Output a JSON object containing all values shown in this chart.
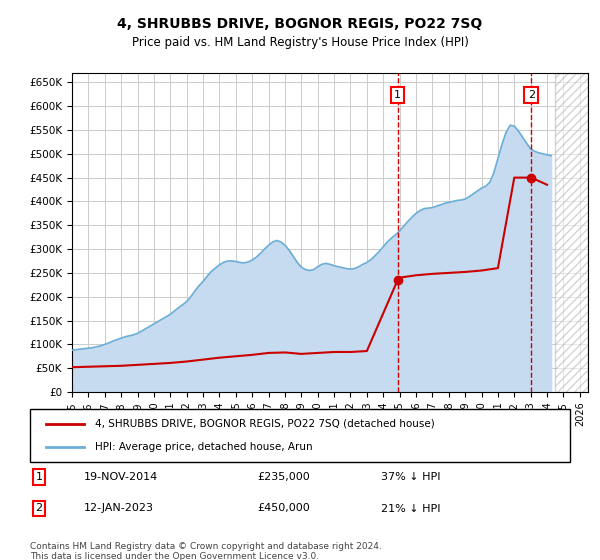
{
  "title": "4, SHRUBBS DRIVE, BOGNOR REGIS, PO22 7SQ",
  "subtitle": "Price paid vs. HM Land Registry's House Price Index (HPI)",
  "xlabel": "",
  "ylabel": "",
  "ylim": [
    0,
    670000
  ],
  "yticks": [
    0,
    50000,
    100000,
    150000,
    200000,
    250000,
    300000,
    350000,
    400000,
    450000,
    500000,
    550000,
    600000,
    650000
  ],
  "xlim_start": 1995.0,
  "xlim_end": 2026.5,
  "sale1_date": 2014.88,
  "sale1_price": 235000,
  "sale1_label": "1",
  "sale1_text": "19-NOV-2014",
  "sale1_pct": "37%",
  "sale2_date": 2023.04,
  "sale2_price": 450000,
  "sale2_label": "2",
  "sale2_text": "12-JAN-2023",
  "sale2_pct": "21%",
  "hpi_color": "#6baed6",
  "hpi_fill_color": "#c6dbef",
  "price_color": "#cc0000",
  "dashed_color": "#cc0000",
  "grid_color": "#cccccc",
  "bg_color": "#ffffff",
  "plot_bg_color": "#ffffff",
  "legend_label1": "4, SHRUBBS DRIVE, BOGNOR REGIS, PO22 7SQ (detached house)",
  "legend_label2": "HPI: Average price, detached house, Arun",
  "footnote": "Contains HM Land Registry data © Crown copyright and database right 2024.\nThis data is licensed under the Open Government Licence v3.0.",
  "hpi_x": [
    1995.0,
    1995.25,
    1995.5,
    1995.75,
    1996.0,
    1996.25,
    1996.5,
    1996.75,
    1997.0,
    1997.25,
    1997.5,
    1997.75,
    1998.0,
    1998.25,
    1998.5,
    1998.75,
    1999.0,
    1999.25,
    1999.5,
    1999.75,
    2000.0,
    2000.25,
    2000.5,
    2000.75,
    2001.0,
    2001.25,
    2001.5,
    2001.75,
    2002.0,
    2002.25,
    2002.5,
    2002.75,
    2003.0,
    2003.25,
    2003.5,
    2003.75,
    2004.0,
    2004.25,
    2004.5,
    2004.75,
    2005.0,
    2005.25,
    2005.5,
    2005.75,
    2006.0,
    2006.25,
    2006.5,
    2006.75,
    2007.0,
    2007.25,
    2007.5,
    2007.75,
    2008.0,
    2008.25,
    2008.5,
    2008.75,
    2009.0,
    2009.25,
    2009.5,
    2009.75,
    2010.0,
    2010.25,
    2010.5,
    2010.75,
    2011.0,
    2011.25,
    2011.5,
    2011.75,
    2012.0,
    2012.25,
    2012.5,
    2012.75,
    2013.0,
    2013.25,
    2013.5,
    2013.75,
    2014.0,
    2014.25,
    2014.5,
    2014.75,
    2015.0,
    2015.25,
    2015.5,
    2015.75,
    2016.0,
    2016.25,
    2016.5,
    2016.75,
    2017.0,
    2017.25,
    2017.5,
    2017.75,
    2018.0,
    2018.25,
    2018.5,
    2018.75,
    2019.0,
    2019.25,
    2019.5,
    2019.75,
    2020.0,
    2020.25,
    2020.5,
    2020.75,
    2021.0,
    2021.25,
    2021.5,
    2021.75,
    2022.0,
    2022.25,
    2022.5,
    2022.75,
    2023.0,
    2023.25,
    2023.5,
    2023.75,
    2024.0,
    2024.25
  ],
  "hpi_y": [
    88000,
    89000,
    90000,
    91000,
    92000,
    93000,
    95000,
    97000,
    100000,
    103000,
    107000,
    110000,
    113000,
    116000,
    118000,
    120000,
    123000,
    128000,
    133000,
    138000,
    143000,
    148000,
    153000,
    158000,
    163000,
    170000,
    177000,
    183000,
    190000,
    200000,
    212000,
    223000,
    232000,
    243000,
    253000,
    260000,
    267000,
    272000,
    275000,
    275000,
    274000,
    272000,
    271000,
    273000,
    277000,
    283000,
    291000,
    300000,
    308000,
    315000,
    318000,
    315000,
    308000,
    298000,
    285000,
    272000,
    262000,
    257000,
    255000,
    257000,
    263000,
    268000,
    270000,
    268000,
    265000,
    263000,
    261000,
    259000,
    258000,
    259000,
    263000,
    268000,
    272000,
    278000,
    286000,
    295000,
    305000,
    315000,
    323000,
    330000,
    338000,
    348000,
    358000,
    367000,
    375000,
    381000,
    385000,
    386000,
    387000,
    390000,
    393000,
    396000,
    398000,
    400000,
    402000,
    403000,
    405000,
    410000,
    416000,
    422000,
    428000,
    432000,
    440000,
    460000,
    490000,
    520000,
    545000,
    560000,
    558000,
    548000,
    535000,
    522000,
    510000,
    505000,
    502000,
    500000,
    498000,
    496000
  ],
  "price_x": [
    1995.0,
    1996.0,
    1997.0,
    1998.0,
    1999.0,
    2000.0,
    2001.0,
    2002.0,
    2003.0,
    2004.0,
    2005.0,
    2006.0,
    2007.0,
    2008.0,
    2009.0,
    2010.0,
    2011.0,
    2012.0,
    2013.0,
    2014.88,
    2015.0,
    2016.0,
    2017.0,
    2018.0,
    2019.0,
    2020.0,
    2021.0,
    2022.0,
    2023.04,
    2024.0
  ],
  "price_y": [
    52000,
    53000,
    54000,
    55000,
    57000,
    59000,
    61000,
    64000,
    68000,
    72000,
    75000,
    78000,
    82000,
    83000,
    80000,
    82000,
    84000,
    84000,
    86000,
    235000,
    240000,
    245000,
    248000,
    250000,
    252000,
    255000,
    260000,
    450000,
    450000,
    435000
  ],
  "hatch_color": "#aaaaaa"
}
